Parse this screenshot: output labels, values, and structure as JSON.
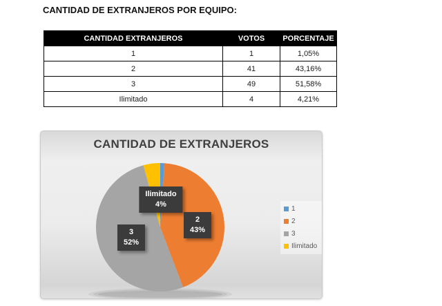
{
  "page": {
    "title": "CANTIDAD DE EXTRANJEROS POR EQUIPO:"
  },
  "table": {
    "headers": [
      "CANTIDAD EXTRANJEROS",
      "VOTOS",
      "PORCENTAJE"
    ],
    "rows": [
      [
        "1",
        "1",
        "1,05%"
      ],
      [
        "2",
        "41",
        "43,16%"
      ],
      [
        "3",
        "49",
        "51,58%"
      ],
      [
        "Ilimitado",
        "4",
        "4,21%"
      ]
    ]
  },
  "chart_data": {
    "type": "pie",
    "title": "CANTIDAD DE EXTRANJEROS",
    "categories": [
      "1",
      "2",
      "3",
      "Ilimitado"
    ],
    "values": [
      1,
      41,
      49,
      4
    ],
    "percentages": [
      1.05,
      43.16,
      51.58,
      4.21
    ],
    "colors": [
      "#5B9BD5",
      "#ED7D31",
      "#A5A5A5",
      "#FFC000"
    ],
    "legend_position": "right",
    "start_angle_deg": 0,
    "direction": "clockwise",
    "data_labels": [
      {
        "slice": "Ilimitado",
        "line1": "Ilimitado",
        "line2": "4%"
      },
      {
        "slice": "2",
        "line1": "2",
        "line2": "43%"
      },
      {
        "slice": "3",
        "line1": "3",
        "line2": "52%"
      }
    ]
  }
}
